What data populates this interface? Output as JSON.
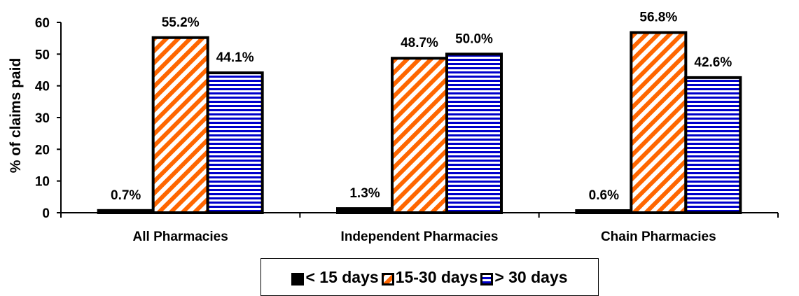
{
  "chart_data": {
    "type": "bar",
    "title": "",
    "xlabel": "",
    "ylabel": "% of claims paid",
    "ylim": [
      0,
      60
    ],
    "yticks": [
      0,
      10,
      20,
      30,
      40,
      50,
      60
    ],
    "grid": false,
    "legend_position": "bottom",
    "categories": [
      "All Pharmacies",
      "Independent Pharmacies",
      "Chain Pharmacies"
    ],
    "series": [
      {
        "name": "< 15 days",
        "values": [
          0.7,
          1.3,
          0.6
        ],
        "labels": [
          "0.7%",
          "1.3%",
          "0.6%"
        ],
        "color": "#000000",
        "pattern": "solid"
      },
      {
        "name": "15-30 days",
        "values": [
          55.2,
          48.7,
          56.8
        ],
        "labels": [
          "55.2%",
          "48.7%",
          "56.8%"
        ],
        "color": "#ff6600",
        "pattern": "diagonal"
      },
      {
        "name": "> 30 days",
        "values": [
          44.1,
          50.0,
          42.6
        ],
        "labels": [
          "44.1%",
          "50.0%",
          "42.6%"
        ],
        "color": "#0000cc",
        "pattern": "horizontal"
      }
    ]
  }
}
